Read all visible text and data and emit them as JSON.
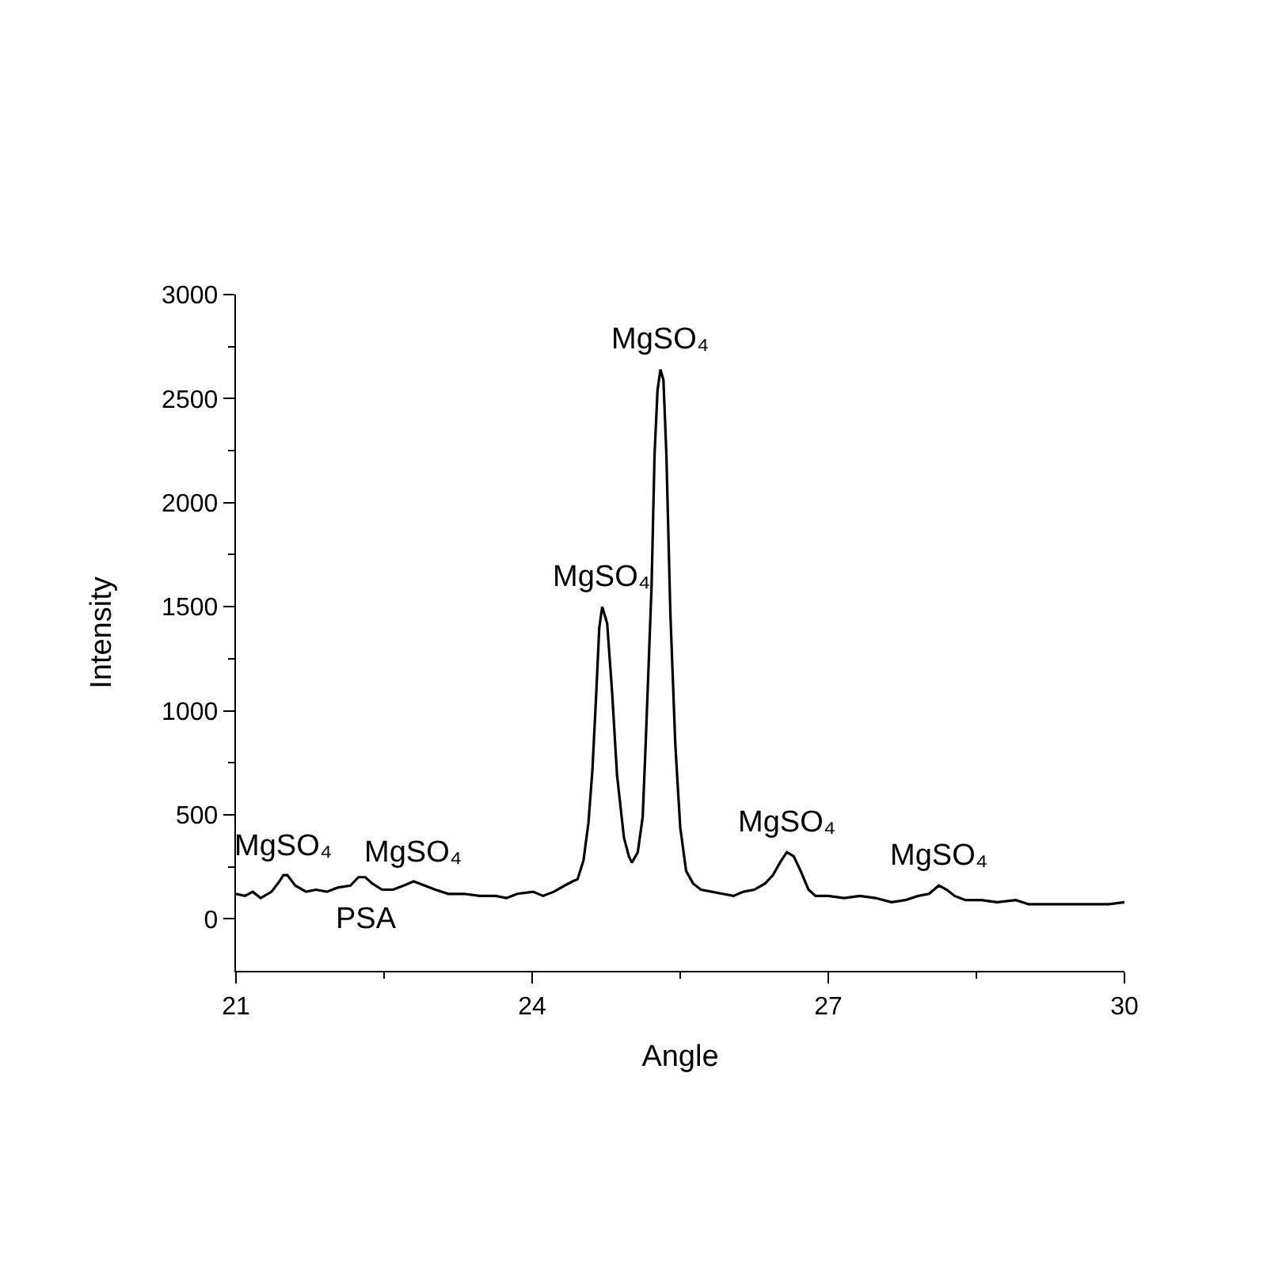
{
  "chart_data": {
    "type": "line",
    "xlabel": "Angle",
    "ylabel": "Intensity",
    "line_style": "solid",
    "xlim": [
      21,
      30
    ],
    "ylim": [
      -250,
      3000
    ],
    "xticks": [
      21,
      {
        "value": 22.5,
        "label": null
      },
      24,
      {
        "value": 25.5,
        "label": null
      },
      27,
      {
        "value": 28.5,
        "label": null
      },
      30
    ],
    "yticks": [
      0,
      {
        "value": 250,
        "label": null
      },
      500,
      {
        "value": 750,
        "label": null
      },
      1000,
      {
        "value": 1250,
        "label": null
      },
      1500,
      {
        "value": 1750,
        "label": null
      },
      2000,
      {
        "value": 2250,
        "label": null
      },
      2500,
      {
        "value": 2750,
        "label": null
      },
      3000
    ],
    "x": [
      21.0,
      21.09,
      21.17,
      21.25,
      21.36,
      21.44,
      21.48,
      21.52,
      21.6,
      21.71,
      21.81,
      21.92,
      22.03,
      22.16,
      22.24,
      22.31,
      22.38,
      22.48,
      22.59,
      22.7,
      22.8,
      22.91,
      23.02,
      23.15,
      23.31,
      23.47,
      23.63,
      23.74,
      23.85,
      24.01,
      24.11,
      24.22,
      24.33,
      24.41,
      24.46,
      24.52,
      24.57,
      24.61,
      24.65,
      24.68,
      24.71,
      24.76,
      24.81,
      24.86,
      24.93,
      24.98,
      25.01,
      25.07,
      25.12,
      25.15,
      25.21,
      25.24,
      25.27,
      25.3,
      25.33,
      25.36,
      25.4,
      25.45,
      25.5,
      25.56,
      25.63,
      25.71,
      25.82,
      25.93,
      26.04,
      26.14,
      26.25,
      26.36,
      26.44,
      26.51,
      26.58,
      26.65,
      26.72,
      26.8,
      26.87,
      27.0,
      27.16,
      27.32,
      27.48,
      27.64,
      27.78,
      27.91,
      28.02,
      28.12,
      28.2,
      28.28,
      28.39,
      28.55,
      28.71,
      28.9,
      29.03,
      29.2,
      29.36,
      29.52,
      29.68,
      29.84,
      30.0
    ],
    "series": [
      {
        "color": "#000000",
        "values": [
          120,
          110,
          130,
          100,
          130,
          180,
          210,
          210,
          160,
          130,
          140,
          130,
          150,
          160,
          200,
          200,
          170,
          140,
          140,
          160,
          180,
          160,
          140,
          120,
          120,
          110,
          110,
          100,
          120,
          130,
          110,
          130,
          160,
          180,
          190,
          280,
          460,
          710,
          1090,
          1400,
          1500,
          1420,
          1090,
          690,
          390,
          300,
          270,
          320,
          490,
          840,
          1600,
          2230,
          2540,
          2640,
          2590,
          2230,
          1470,
          840,
          440,
          230,
          170,
          140,
          130,
          120,
          110,
          130,
          140,
          170,
          210,
          270,
          320,
          300,
          230,
          140,
          110,
          110,
          100,
          110,
          100,
          80,
          90,
          110,
          120,
          160,
          140,
          110,
          90,
          90,
          80,
          90,
          70,
          70,
          70,
          70,
          70,
          70,
          80
        ]
      }
    ],
    "annotations": [
      {
        "text": "MgSO₄",
        "x": 21.48,
        "y": 210
      },
      {
        "text": "MgSO₄",
        "x": 22.8,
        "y": 180
      },
      {
        "text": "MgSO₄",
        "x": 24.71,
        "y": 1500
      },
      {
        "text": "MgSO₄",
        "x": 25.3,
        "y": 2640
      },
      {
        "text": "MgSO₄",
        "x": 26.58,
        "y": 320
      },
      {
        "text": "MgSO₄",
        "x": 28.12,
        "y": 160
      },
      {
        "text": "PSA",
        "x": 22.31,
        "y": 200
      }
    ]
  }
}
